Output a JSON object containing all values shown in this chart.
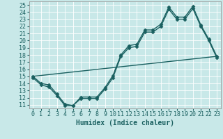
{
  "xlabel": "Humidex (Indice chaleur)",
  "background_color": "#c8e8e8",
  "line_color": "#1a6060",
  "grid_color": "#ffffff",
  "xlim": [
    -0.5,
    23.5
  ],
  "ylim": [
    10.5,
    25.5
  ],
  "xticks": [
    0,
    1,
    2,
    3,
    4,
    5,
    6,
    7,
    8,
    9,
    10,
    11,
    12,
    13,
    14,
    15,
    16,
    17,
    18,
    19,
    20,
    21,
    22,
    23
  ],
  "yticks": [
    11,
    12,
    13,
    14,
    15,
    16,
    17,
    18,
    19,
    20,
    21,
    22,
    23,
    24,
    25
  ],
  "line1_x": [
    0,
    1,
    2,
    3,
    4,
    5,
    6,
    7,
    8,
    9,
    10,
    11,
    12,
    13,
    14,
    15,
    16,
    17,
    18,
    19,
    20,
    21,
    22,
    23
  ],
  "line1_y": [
    15.0,
    14.0,
    13.8,
    12.5,
    11.1,
    10.9,
    12.1,
    12.1,
    12.1,
    13.4,
    15.1,
    18.0,
    19.3,
    19.5,
    21.5,
    21.5,
    22.3,
    24.7,
    23.3,
    23.3,
    24.8,
    22.2,
    20.2,
    17.8
  ],
  "line2_x": [
    0,
    1,
    2,
    3,
    4,
    5,
    6,
    7,
    8,
    9,
    10,
    11,
    12,
    13,
    14,
    15,
    16,
    17,
    18,
    19,
    20,
    21,
    22,
    23
  ],
  "line2_y": [
    14.8,
    13.8,
    13.5,
    12.3,
    10.9,
    10.9,
    11.9,
    11.9,
    11.9,
    13.2,
    14.8,
    17.8,
    19.0,
    19.2,
    21.2,
    21.2,
    22.0,
    24.4,
    23.0,
    23.0,
    24.5,
    22.0,
    20.0,
    17.6
  ],
  "line3_x": [
    0,
    23
  ],
  "line3_y": [
    15.0,
    17.8
  ],
  "marker_style": "D",
  "marker_size": 2.5,
  "line_width": 1.0,
  "font_size": 6,
  "xlabel_fontsize": 7
}
